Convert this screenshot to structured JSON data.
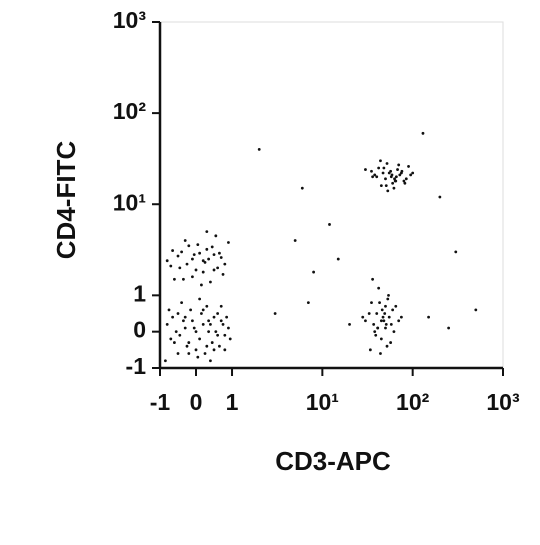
{
  "chart_data": {
    "type": "scatter",
    "x_label": "CD3-APC",
    "y_label": "CD4-FITC",
    "scale": "biexponential",
    "color": "#111111",
    "xlim": [
      -1,
      1000
    ],
    "ylim": [
      -1,
      1000
    ],
    "xticks": [
      -1,
      0,
      1,
      {
        "value": 10,
        "label": "10¹"
      },
      {
        "value": 100,
        "label": "10²"
      },
      {
        "value": 1000,
        "label": "10³"
      }
    ],
    "yticks": [
      -1,
      0,
      1,
      {
        "value": 10,
        "label": "10¹"
      },
      {
        "value": 100,
        "label": "10²"
      },
      {
        "value": 1000,
        "label": "10³"
      }
    ],
    "x": [
      -0.8,
      -0.6,
      -0.5,
      -0.3,
      -0.2,
      -0.1,
      0,
      0.1,
      0.2,
      0.3,
      0.4,
      0.5,
      0.6,
      0.7,
      0.8,
      0.9,
      -0.7,
      -0.4,
      0.05,
      0.35,
      -0.55,
      -0.25,
      0.15,
      0.45,
      0.75,
      -0.85,
      -0.15,
      0.25,
      0.55,
      0.95,
      -0.65,
      -0.35,
      0.0,
      0.3,
      0.6,
      -0.45,
      -0.05,
      0.4,
      0.7,
      -0.75,
      -0.2,
      0.2,
      0.5,
      0.85,
      -0.5,
      0.1,
      0.65,
      -0.3,
      0.35,
      0.8,
      -0.7,
      -0.4,
      -0.1,
      0.2,
      0.5,
      0.8,
      -0.6,
      -0.2,
      0.1,
      0.4,
      0.7,
      -0.8,
      -0.3,
      0.0,
      0.3,
      0.6,
      0.9,
      -0.5,
      -0.1,
      0.25,
      0.55,
      -0.65,
      -0.25,
      0.15,
      0.45,
      0.75,
      -0.45,
      0.05,
      0.35,
      0.65,
      -0.35,
      -0.05,
      0.3,
      0.5,
      0.2,
      40,
      55,
      65,
      48,
      72,
      60,
      35,
      85,
      52,
      45,
      68,
      58,
      90,
      38,
      62,
      75,
      50,
      44,
      80,
      57,
      66,
      30,
      95,
      53,
      70,
      47,
      63,
      82,
      42,
      59,
      76,
      51,
      36,
      100,
      64,
      30,
      40,
      50,
      35,
      45,
      55,
      60,
      38,
      42,
      48,
      52,
      33,
      58,
      65,
      44,
      36,
      47,
      53,
      41,
      70,
      39,
      46,
      51,
      28,
      57,
      43,
      49,
      37,
      62,
      54,
      45,
      34,
      50,
      75,
      41,
      3,
      5,
      8,
      12,
      20,
      150,
      200,
      300,
      2,
      15,
      7,
      250,
      130,
      6,
      500
    ],
    "values": [
      0.2,
      -0.3,
      0.5,
      0.1,
      -0.6,
      0.3,
      0.0,
      -0.2,
      0.6,
      -0.4,
      0.2,
      0.4,
      -0.1,
      0.7,
      -0.5,
      0.1,
      -0.2,
      0.8,
      -0.7,
      0.3,
      0.0,
      -0.4,
      0.5,
      -0.3,
      0.2,
      -0.8,
      0.6,
      -0.6,
      0.0,
      -0.2,
      0.4,
      0.3,
      -0.5,
      0.7,
      0.5,
      -0.1,
      0.1,
      -0.8,
      0.3,
      0.6,
      -0.3,
      0.2,
      -0.5,
      0.4,
      -0.6,
      0.9,
      -0.4,
      0.4,
      0.0,
      -0.1,
      2.1,
      3.0,
      2.5,
      1.8,
      2.8,
      2.2,
      1.5,
      3.5,
      2.9,
      1.4,
      2.6,
      2.4,
      4.0,
      1.9,
      3.2,
      2.0,
      3.8,
      2.7,
      1.6,
      2.3,
      4.5,
      3.1,
      2.2,
      1.3,
      3.4,
      1.7,
      2.0,
      3.6,
      2.5,
      2.9,
      1.5,
      2.8,
      5.0,
      1.9,
      2.4,
      20,
      22,
      18,
      25,
      21,
      17,
      23,
      19,
      28,
      16,
      24,
      20,
      26,
      21,
      15,
      22,
      19,
      30,
      18,
      23,
      20,
      24,
      21,
      14,
      27,
      22,
      19,
      17,
      25,
      21,
      23,
      16,
      20,
      22,
      18,
      0.3,
      0.5,
      0.1,
      0.8,
      -0.2,
      0.4,
      0.6,
      0.0,
      1.2,
      0.3,
      -0.4,
      0.5,
      0.2,
      0.7,
      -0.6,
      1.5,
      0.4,
      0.9,
      0.1,
      0.3,
      -0.1,
      0.6,
      0.2,
      0.4,
      -0.3,
      0.8,
      0.5,
      0.2,
      0.0,
      1.0,
      0.3,
      -0.5,
      0.7,
      0.4,
      0.1,
      0.5,
      4,
      1.8,
      6,
      0.2,
      0.4,
      12,
      3,
      40,
      2.5,
      0.8,
      0.1,
      60,
      15,
      0.6
    ]
  }
}
